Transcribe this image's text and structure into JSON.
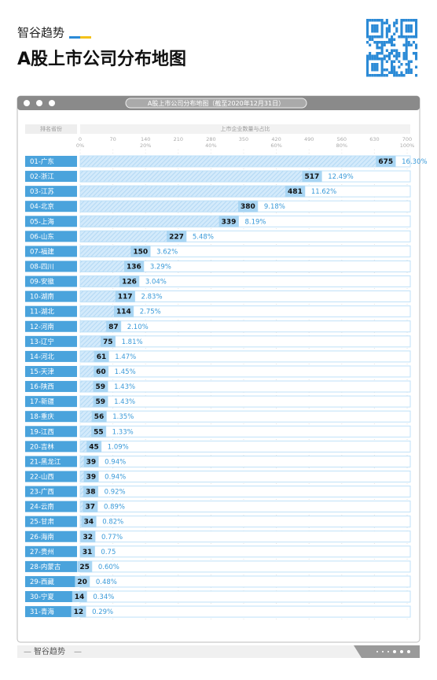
{
  "header": {
    "brand": "智谷趋势",
    "title": "A股上市公司分布地图"
  },
  "chart_data": {
    "type": "bar",
    "orientation": "horizontal",
    "window_title": "A股上市公司分布地图（截至2020年12月31日）",
    "category_header": "排名省份",
    "axis_title": "上市企业数量与占比",
    "categories": [
      "01-广东",
      "02-浙江",
      "03-江苏",
      "04-北京",
      "05-上海",
      "06-山东",
      "07-福建",
      "08-四川",
      "09-安徽",
      "10-湖南",
      "11-湖北",
      "12-河南",
      "13-辽宁",
      "14-河北",
      "15-天津",
      "16-陕西",
      "17-新疆",
      "18-重庆",
      "19-江西",
      "20-吉林",
      "21-黑龙江",
      "22-山西",
      "23-广西",
      "24-云南",
      "25-甘肃",
      "26-海南",
      "27-贵州",
      "28-内蒙古",
      "29-西藏",
      "30-宁夏",
      "31-青海"
    ],
    "values": [
      675,
      517,
      481,
      380,
      339,
      227,
      150,
      136,
      126,
      117,
      114,
      87,
      75,
      61,
      60,
      59,
      59,
      56,
      55,
      45,
      39,
      39,
      38,
      37,
      34,
      32,
      31,
      25,
      20,
      14,
      12
    ],
    "shares": [
      16.3,
      12.49,
      11.62,
      9.18,
      8.19,
      5.48,
      3.62,
      3.29,
      3.04,
      2.83,
      2.75,
      2.1,
      1.81,
      1.47,
      1.45,
      1.43,
      1.43,
      1.35,
      1.33,
      1.09,
      0.94,
      0.94,
      0.92,
      0.89,
      0.82,
      0.77,
      0.75,
      0.6,
      0.48,
      0.34,
      0.29
    ],
    "share_labels": [
      "16.30%",
      "12.49%",
      "11.62%",
      "9.18%",
      "8.19%",
      "5.48%",
      "3.62%",
      "3.29%",
      "3.04%",
      "2.83%",
      "2.75%",
      "2.10%",
      "1.81%",
      "1.47%",
      "1.45%",
      "1.43%",
      "1.43%",
      "1.35%",
      "1.33%",
      "1.09%",
      "0.94%",
      "0.94%",
      "0.92%",
      "0.89%",
      "0.82%",
      "0.77%",
      "0.75",
      "0.60%",
      "0.48%",
      "0.34%",
      "0.29%"
    ],
    "xlim": [
      0,
      700
    ],
    "xticks": [
      0,
      70,
      140,
      210,
      280,
      350,
      420,
      490,
      560,
      630,
      700
    ],
    "x2lim": [
      0,
      100
    ],
    "x2ticks": [
      {
        "value": 0,
        "label": "0%"
      },
      {
        "value": 20,
        "label": "20%"
      },
      {
        "value": 40,
        "label": "40%"
      },
      {
        "value": 60,
        "label": "60%"
      },
      {
        "value": 80,
        "label": "80%"
      },
      {
        "value": 100,
        "label": "100%"
      }
    ],
    "grid": true,
    "color": "#bfe1f8",
    "label_color": "#4aa3dc"
  }
}
